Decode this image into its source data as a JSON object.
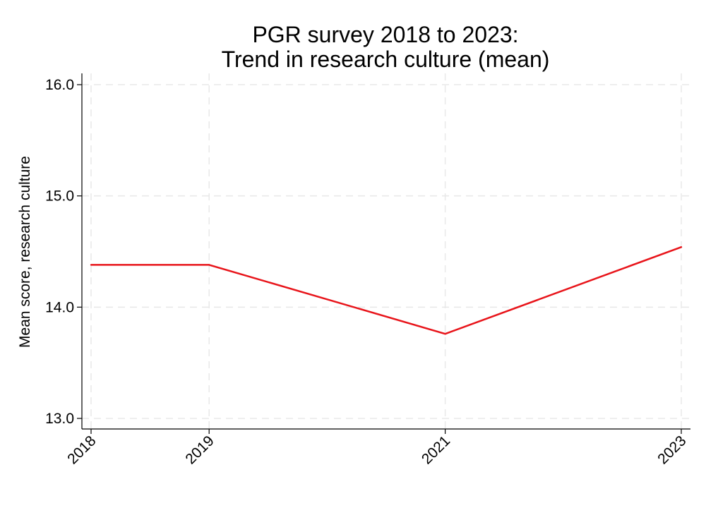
{
  "chart_data": {
    "type": "line",
    "title_lines": [
      "PGR survey 2018 to 2023:",
      "Trend in research culture (mean)"
    ],
    "xlabel": "",
    "ylabel": "Mean score, research culture",
    "x": [
      2018,
      2019,
      2021,
      2023
    ],
    "x_tick_labels": [
      "2018",
      "2019",
      "2021",
      "2023"
    ],
    "xlim": [
      2018,
      2023
    ],
    "y_ticks": [
      13.0,
      14.0,
      15.0,
      16.0
    ],
    "y_tick_labels": [
      "13.0",
      "14.0",
      "15.0",
      "16.0"
    ],
    "ylim": [
      13.0,
      16.0
    ],
    "grid": true,
    "series": [
      {
        "values": [
          14.38,
          14.38,
          13.76,
          14.54
        ],
        "color": "#e8141a"
      }
    ]
  }
}
